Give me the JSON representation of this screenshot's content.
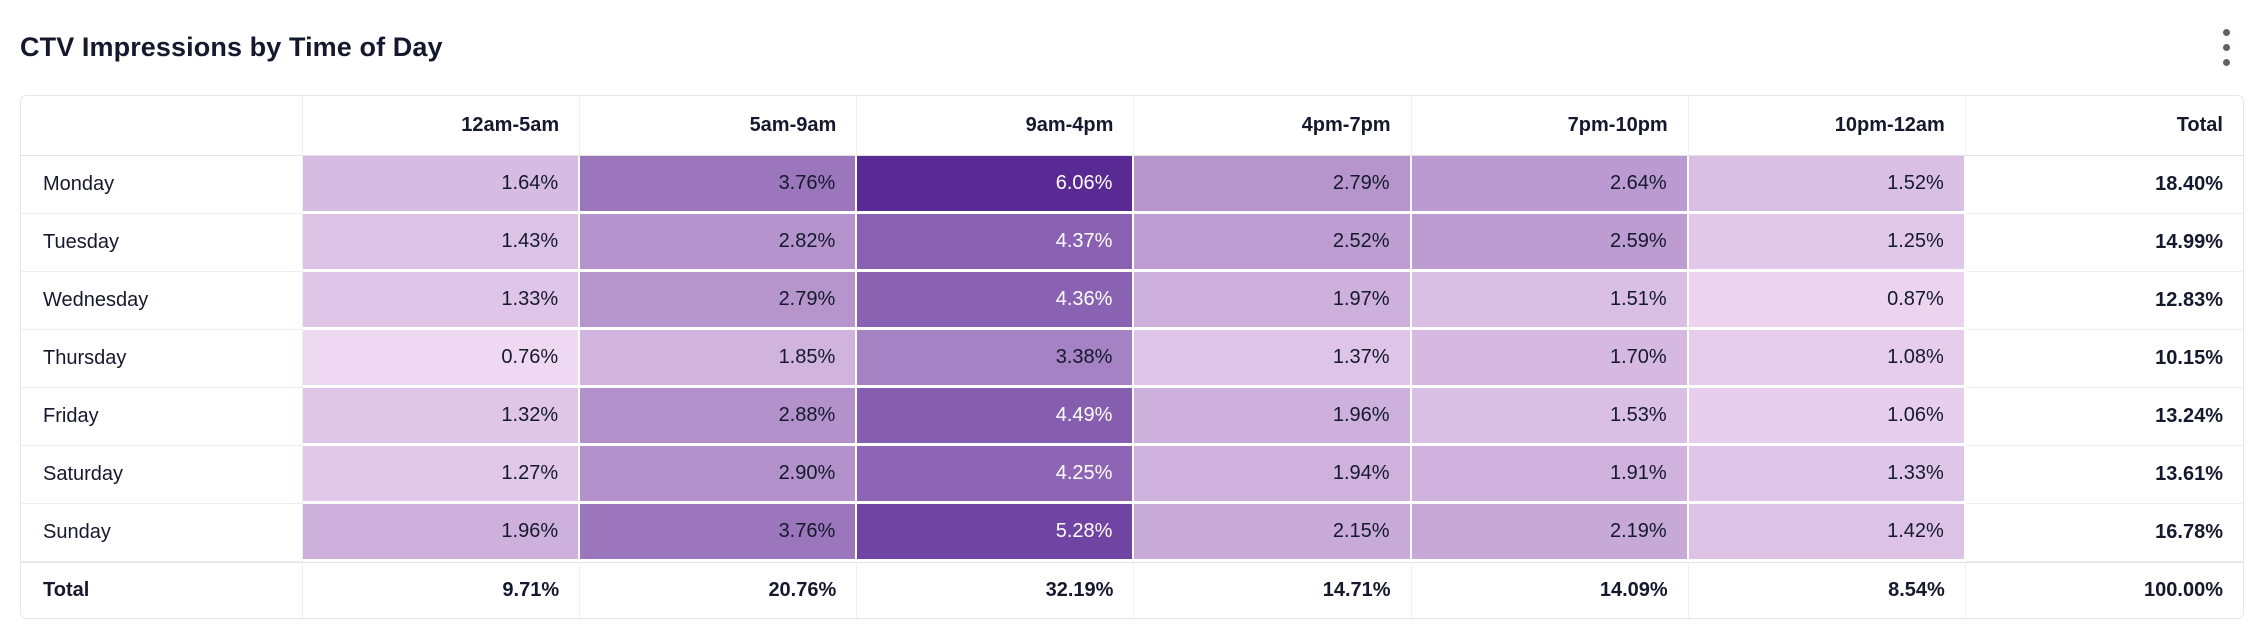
{
  "header": {
    "title": "CTV Impressions by Time of Day",
    "menu_icon": "kebab-vertical-dots-icon"
  },
  "colors": {
    "heat_min": "#efd8f1",
    "heat_max": "#5a2a94",
    "border": "#e6e6e6",
    "text_dark": "#15192d",
    "text_on_dark": "#ffffff"
  },
  "chart_data": {
    "type": "heatmap",
    "title": "CTV Impressions by Time of Day",
    "unit": "%",
    "value_format": "0.00%",
    "legend": "none",
    "columns": [
      "12am-5am",
      "5am-9am",
      "9am-4pm",
      "4pm-7pm",
      "7pm-10pm",
      "10pm-12am"
    ],
    "rows": [
      "Monday",
      "Tuesday",
      "Wednesday",
      "Thursday",
      "Friday",
      "Saturday",
      "Sunday"
    ],
    "values": [
      [
        1.64,
        3.76,
        6.06,
        2.79,
        2.64,
        1.52
      ],
      [
        1.43,
        2.82,
        4.37,
        2.52,
        2.59,
        1.25
      ],
      [
        1.33,
        2.79,
        4.36,
        1.97,
        1.51,
        0.87
      ],
      [
        0.76,
        1.85,
        3.38,
        1.37,
        1.7,
        1.08
      ],
      [
        1.32,
        2.88,
        4.49,
        1.96,
        1.53,
        1.06
      ],
      [
        1.27,
        2.9,
        4.25,
        1.94,
        1.91,
        1.33
      ],
      [
        1.96,
        3.76,
        5.28,
        2.15,
        2.19,
        1.42
      ]
    ],
    "row_totals": [
      18.4,
      14.99,
      12.83,
      10.15,
      13.24,
      13.61,
      16.78
    ],
    "column_totals": [
      9.71,
      20.76,
      32.19,
      14.71,
      14.09,
      8.54
    ],
    "grand_total": 100.0,
    "total_label": "Total"
  }
}
